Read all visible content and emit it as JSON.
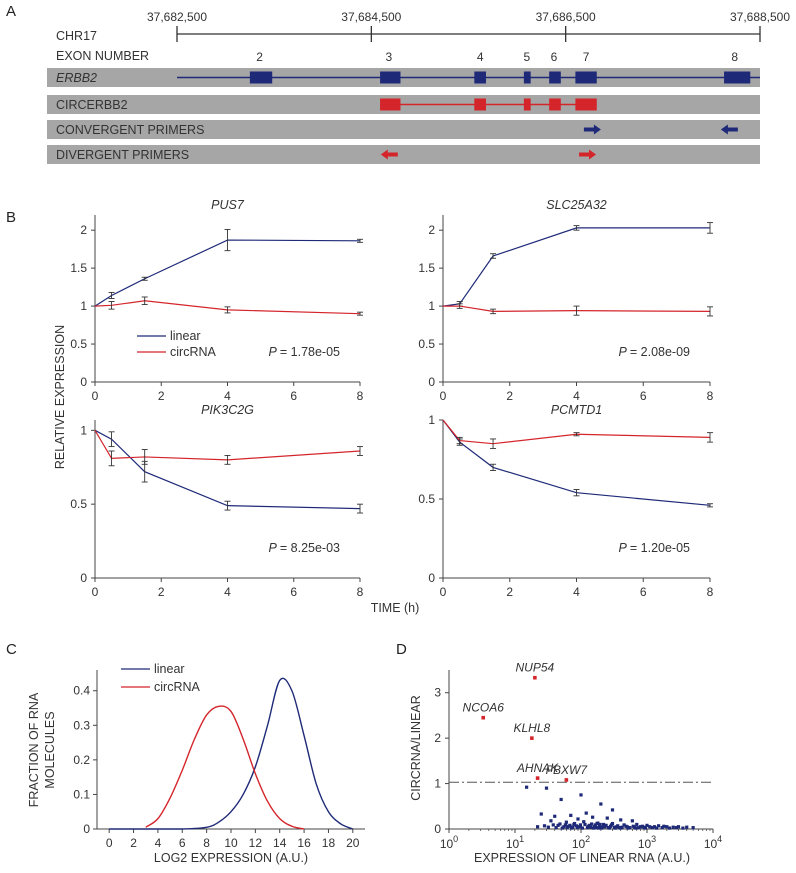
{
  "colors": {
    "linear": "#1e2a78",
    "circ": "#d4252b",
    "bar": "#a6a6a6",
    "axis": "#444444"
  },
  "panels": {
    "a": "A",
    "b": "B",
    "c": "C",
    "d": "D"
  },
  "chart_data": [
    {
      "type": "gene-track",
      "panel": "A",
      "chromosome": "CHR17",
      "coords": [
        "37,682,500",
        "37,684,500",
        "37,686,500",
        "37,688,500"
      ],
      "coord_values": [
        37682500,
        37684500,
        37686500,
        37688500
      ],
      "exon_row_label": "EXON NUMBER",
      "exon_numbers": [
        {
          "n": "2",
          "pos": 37683350
        },
        {
          "n": "3",
          "pos": 37684680
        },
        {
          "n": "4",
          "pos": 37685620
        },
        {
          "n": "5",
          "pos": 37686100
        },
        {
          "n": "6",
          "pos": 37686380
        },
        {
          "n": "7",
          "pos": 37686710
        },
        {
          "n": "8",
          "pos": 37688240
        }
      ],
      "tracks": [
        {
          "label": "ERBB2",
          "italic": true,
          "kind": "gene",
          "color": "#1e2a78",
          "span": [
            37682500,
            37688500
          ],
          "exons": [
            [
              37683250,
              37683480
            ],
            [
              37684590,
              37684800
            ],
            [
              37685560,
              37685680
            ],
            [
              37686070,
              37686140
            ],
            [
              37686330,
              37686450
            ],
            [
              37686600,
              37686820
            ],
            [
              37688130,
              37688400
            ]
          ]
        },
        {
          "label": "CIRCERBB2",
          "italic": false,
          "kind": "circ",
          "color": "#d4252b",
          "span": [
            37684590,
            37686820
          ],
          "exons": [
            [
              37684590,
              37684800
            ],
            [
              37685560,
              37685680
            ],
            [
              37686070,
              37686140
            ],
            [
              37686330,
              37686450
            ],
            [
              37686600,
              37686820
            ]
          ]
        },
        {
          "label": "CONVERGENT PRIMERS",
          "italic": false,
          "kind": "primers",
          "arrows": [
            {
              "pos": 37686770,
              "dir": "right",
              "color": "#1e2a78"
            },
            {
              "pos": 37688190,
              "dir": "left",
              "color": "#1e2a78"
            }
          ]
        },
        {
          "label": "DIVERGENT PRIMERS",
          "italic": false,
          "kind": "primers",
          "arrows": [
            {
              "pos": 37684690,
              "dir": "left",
              "color": "#d4252b"
            },
            {
              "pos": 37686720,
              "dir": "right",
              "color": "#d4252b"
            }
          ]
        }
      ]
    },
    {
      "type": "line",
      "panel": "B",
      "ylabel": "RELATIVE EXPRESSION",
      "xlabel": "TIME (h)",
      "legend": [
        "linear",
        "circRNA"
      ],
      "x": [
        0,
        0.5,
        1.5,
        4,
        8
      ],
      "plots": [
        {
          "title": "PUS7",
          "p_label": "P",
          "p_value": "= 1.78e-05",
          "ylim": [
            0,
            2.2
          ],
          "yticks": [
            0,
            0.5,
            1,
            1.5,
            2
          ],
          "ytick_labels": [
            "0",
            "0.5",
            "1",
            "1.5",
            "2"
          ],
          "xticks": [
            0,
            2,
            4,
            6,
            8
          ],
          "xtick_labels": [
            "0",
            "2",
            "4",
            "6",
            "8"
          ],
          "series": [
            {
              "name": "linear",
              "values": [
                1.0,
                1.14,
                1.36,
                1.87,
                1.86
              ],
              "err": [
                0.02,
                0.04,
                0.02,
                0.14,
                0.02
              ]
            },
            {
              "name": "circRNA",
              "values": [
                1.0,
                1.01,
                1.07,
                0.95,
                0.9
              ],
              "err": [
                0.02,
                0.05,
                0.05,
                0.04,
                0.02
              ]
            }
          ]
        },
        {
          "title": "SLC25A32",
          "p_label": "P",
          "p_value": "= 2.08e-09",
          "ylim": [
            0,
            2.2
          ],
          "yticks": [
            0,
            0.5,
            1,
            1.5,
            2
          ],
          "ytick_labels": [
            "0",
            "0.5",
            "1",
            "1.5",
            "2"
          ],
          "xticks": [
            0,
            2,
            4,
            6,
            8
          ],
          "xtick_labels": [
            "0",
            "2",
            "4",
            "6",
            "8"
          ],
          "series": [
            {
              "name": "linear",
              "values": [
                1.0,
                1.03,
                1.66,
                2.03,
                2.03
              ],
              "err": [
                0.02,
                0.03,
                0.03,
                0.03,
                0.07
              ]
            },
            {
              "name": "circRNA",
              "values": [
                1.0,
                1.0,
                0.93,
                0.94,
                0.93
              ],
              "err": [
                0.02,
                0.03,
                0.03,
                0.06,
                0.06
              ]
            }
          ]
        },
        {
          "title": "PIK3C2G",
          "p_label": "P",
          "p_value": "= 8.25e-03",
          "ylim": [
            0,
            1.07
          ],
          "yticks": [
            0,
            0.5,
            1
          ],
          "ytick_labels": [
            "0",
            "0.5",
            "1"
          ],
          "xticks": [
            0,
            2,
            4,
            6,
            8
          ],
          "xtick_labels": [
            "0",
            "2",
            "4",
            "6",
            "8"
          ],
          "series": [
            {
              "name": "linear",
              "values": [
                1.0,
                0.94,
                0.72,
                0.49,
                0.47
              ],
              "err": [
                0.02,
                0.05,
                0.07,
                0.03,
                0.03
              ]
            },
            {
              "name": "circRNA",
              "values": [
                1.0,
                0.81,
                0.82,
                0.8,
                0.86
              ],
              "err": [
                0.02,
                0.05,
                0.05,
                0.03,
                0.03
              ]
            }
          ]
        },
        {
          "title": "PCMTD1",
          "p_label": "P",
          "p_value": "= 1.20e-05",
          "ylim": [
            0,
            1.0
          ],
          "yticks": [
            0,
            0.5,
            1
          ],
          "ytick_labels": [
            "0",
            "0.5",
            "1"
          ],
          "xticks": [
            0,
            2,
            4,
            6,
            8
          ],
          "xtick_labels": [
            "0",
            "2",
            "4",
            "6",
            "8"
          ],
          "series": [
            {
              "name": "linear",
              "values": [
                1.0,
                0.86,
                0.7,
                0.54,
                0.46
              ],
              "err": [
                0.01,
                0.02,
                0.02,
                0.02,
                0.01
              ]
            },
            {
              "name": "circRNA",
              "values": [
                1.0,
                0.87,
                0.85,
                0.91,
                0.89
              ],
              "err": [
                0.01,
                0.02,
                0.03,
                0.01,
                0.03
              ]
            }
          ]
        }
      ]
    },
    {
      "type": "line",
      "panel": "C",
      "title": "",
      "ylabel_lines": [
        "FRACTION OF RNA",
        "MOLECULES"
      ],
      "xlabel": "LOG2 EXPRESSION (A.U.)",
      "xlim": [
        -1,
        21
      ],
      "ylim": [
        0,
        0.46
      ],
      "xticks": [
        0,
        2,
        4,
        6,
        8,
        10,
        12,
        14,
        16,
        18,
        20
      ],
      "xtick_labels": [
        "0",
        "2",
        "4",
        "6",
        "8",
        "10",
        "12",
        "14",
        "16",
        "18",
        "20"
      ],
      "yticks": [
        0,
        0.1,
        0.2,
        0.3,
        0.4
      ],
      "ytick_labels": [
        "0",
        "0.1",
        "0.2",
        "0.3",
        "0.4"
      ],
      "legend": [
        "linear",
        "circRNA"
      ],
      "series": [
        {
          "name": "linear",
          "x": [
            0,
            2,
            4,
            6,
            8,
            9,
            10,
            11,
            12,
            13,
            14,
            15,
            16,
            17,
            18,
            19,
            20
          ],
          "values": [
            0,
            0,
            0,
            0,
            0.005,
            0.02,
            0.05,
            0.1,
            0.18,
            0.3,
            0.43,
            0.4,
            0.27,
            0.13,
            0.05,
            0.015,
            0
          ]
        },
        {
          "name": "circRNA",
          "x": [
            3,
            4,
            5,
            6,
            7,
            8,
            9,
            10,
            11,
            12,
            13,
            14,
            15,
            16
          ],
          "values": [
            0.005,
            0.03,
            0.09,
            0.17,
            0.26,
            0.33,
            0.355,
            0.34,
            0.26,
            0.16,
            0.08,
            0.03,
            0.008,
            0
          ]
        }
      ]
    },
    {
      "type": "scatter",
      "panel": "D",
      "ylabel": "CIRCRNA/LINEAR",
      "xlabel": "EXPRESSION OF LINEAR RNA (A.U.)",
      "xscale": "log",
      "xlim": [
        1,
        10000
      ],
      "ylim": [
        0,
        3.5
      ],
      "xtick_exponents": [
        "0",
        "1",
        "2",
        "3",
        "4"
      ],
      "xtick_base": "10",
      "yticks": [
        0,
        1,
        2,
        3
      ],
      "ytick_labels": [
        "0",
        "1",
        "2",
        "3"
      ],
      "threshold": 1.03,
      "highlighted": [
        {
          "label": "NUP54",
          "x": 20,
          "y": 3.33
        },
        {
          "label": "NCOA6",
          "x": 3.3,
          "y": 2.45
        },
        {
          "label": "KLHL8",
          "x": 18,
          "y": 2.0
        },
        {
          "label": "AHNAK",
          "x": 22,
          "y": 1.12
        },
        {
          "label": "FBXW7",
          "x": 60,
          "y": 1.08
        }
      ],
      "points": [
        [
          30,
          0.9
        ],
        [
          100,
          0.75
        ],
        [
          200,
          0.55
        ],
        [
          50,
          0.65
        ],
        [
          300,
          0.42
        ],
        [
          15,
          0.92
        ],
        [
          120,
          0.35
        ],
        [
          25,
          0.33
        ],
        [
          40,
          0.28
        ],
        [
          70,
          0.3
        ],
        [
          150,
          0.26
        ],
        [
          90,
          0.22
        ],
        [
          250,
          0.24
        ],
        [
          400,
          0.2
        ],
        [
          600,
          0.18
        ],
        [
          35,
          0.18
        ],
        [
          60,
          0.15
        ],
        [
          80,
          0.12
        ],
        [
          110,
          0.16
        ],
        [
          180,
          0.13
        ],
        [
          220,
          0.1
        ],
        [
          300,
          0.12
        ],
        [
          450,
          0.09
        ],
        [
          700,
          0.1
        ],
        [
          1000,
          0.08
        ],
        [
          1500,
          0.07
        ],
        [
          2000,
          0.05
        ],
        [
          3000,
          0.05
        ],
        [
          4000,
          0.04
        ],
        [
          5000,
          0.03
        ],
        [
          45,
          0.08
        ],
        [
          55,
          0.05
        ],
        [
          65,
          0.06
        ],
        [
          75,
          0.04
        ],
        [
          85,
          0.07
        ],
        [
          95,
          0.05
        ],
        [
          130,
          0.06
        ],
        [
          140,
          0.04
        ],
        [
          160,
          0.05
        ],
        [
          170,
          0.03
        ],
        [
          190,
          0.06
        ],
        [
          210,
          0.04
        ],
        [
          230,
          0.05
        ],
        [
          260,
          0.03
        ],
        [
          280,
          0.06
        ],
        [
          320,
          0.04
        ],
        [
          350,
          0.05
        ],
        [
          380,
          0.03
        ],
        [
          420,
          0.04
        ],
        [
          500,
          0.05
        ],
        [
          550,
          0.03
        ],
        [
          650,
          0.04
        ],
        [
          750,
          0.03
        ],
        [
          800,
          0.05
        ],
        [
          900,
          0.04
        ],
        [
          1200,
          0.03
        ],
        [
          1300,
          0.05
        ],
        [
          1700,
          0.03
        ],
        [
          2500,
          0.04
        ],
        [
          3500,
          0.02
        ],
        [
          22,
          0.05
        ],
        [
          28,
          0.07
        ],
        [
          32,
          0.04
        ],
        [
          38,
          0.09
        ],
        [
          42,
          0.03
        ],
        [
          48,
          0.11
        ],
        [
          52,
          0.02
        ],
        [
          58,
          0.09
        ],
        [
          62,
          0.03
        ],
        [
          68,
          0.08
        ],
        [
          72,
          0.02
        ],
        [
          78,
          0.1
        ],
        [
          88,
          0.03
        ],
        [
          98,
          0.09
        ],
        [
          105,
          0.02
        ],
        [
          115,
          0.1
        ],
        [
          125,
          0.03
        ],
        [
          135,
          0.08
        ],
        [
          145,
          0.11
        ],
        [
          155,
          0.02
        ],
        [
          165,
          0.09
        ],
        [
          175,
          0.12
        ],
        [
          185,
          0.02
        ],
        [
          195,
          0.1
        ],
        [
          205,
          0.02
        ],
        [
          240,
          0.08
        ],
        [
          270,
          0.02
        ],
        [
          290,
          0.09
        ],
        [
          330,
          0.02
        ],
        [
          360,
          0.07
        ],
        [
          400,
          0.02
        ],
        [
          480,
          0.06
        ],
        [
          520,
          0.02
        ],
        [
          620,
          0.06
        ],
        [
          680,
          0.02
        ],
        [
          850,
          0.06
        ],
        [
          950,
          0.02
        ],
        [
          1100,
          0.05
        ],
        [
          1400,
          0.02
        ],
        [
          1800,
          0.06
        ],
        [
          2200,
          0.02
        ],
        [
          2800,
          0.03
        ]
      ]
    }
  ]
}
